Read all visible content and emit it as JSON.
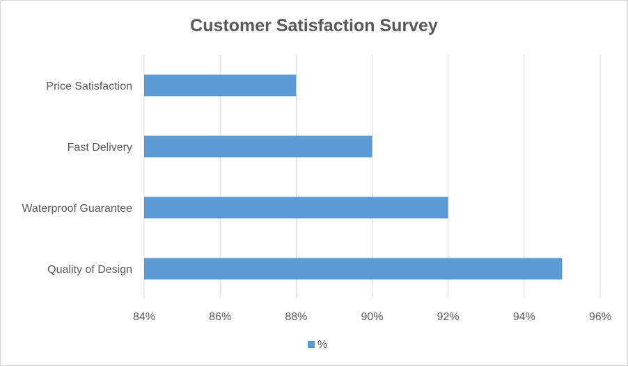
{
  "chart_data": {
    "type": "bar",
    "orientation": "horizontal",
    "title": "Customer Satisfaction Survey",
    "categories": [
      "Price Satisfaction",
      "Fast Delivery",
      "Waterproof Guarantee",
      "Quality of Design"
    ],
    "series": [
      {
        "name": "%",
        "values": [
          88,
          90,
          92,
          95
        ],
        "color": "#5b9bd5"
      }
    ],
    "xlim": [
      84,
      96
    ],
    "xticks": [
      84,
      86,
      88,
      90,
      92,
      94,
      96
    ],
    "tick_suffix": "%",
    "xlabel": "",
    "ylabel": "",
    "grid": "vertical",
    "legend": "bottom-center"
  },
  "colors": {
    "bar": "#5b9bd5",
    "grid": "#d9d9d9",
    "text": "#595959"
  }
}
